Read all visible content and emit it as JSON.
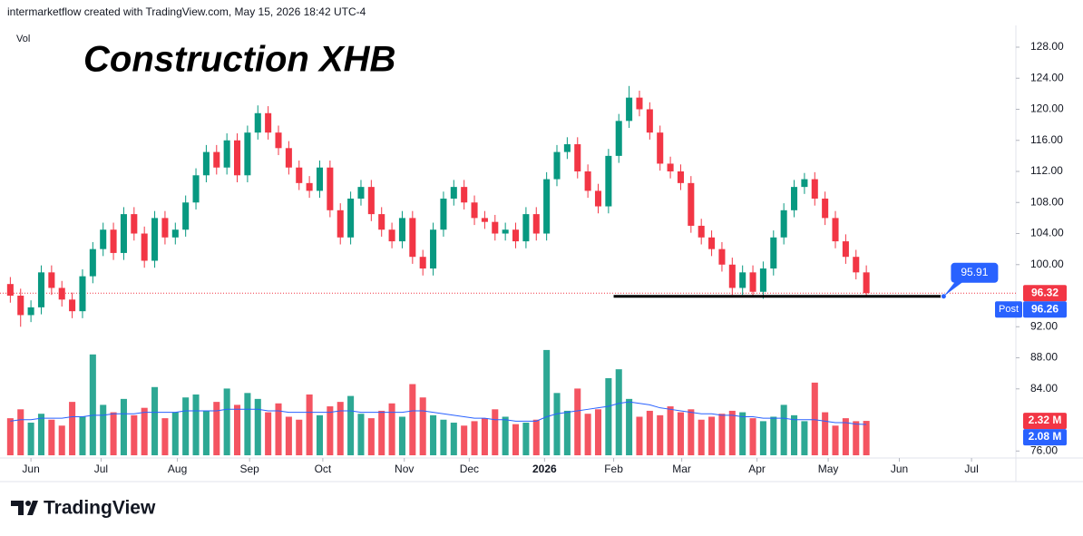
{
  "header": "intermarketflow created with TradingView.com, May 15, 2026 18:42 UTC-4",
  "footer_logo": "TradingView",
  "chart_data": {
    "type": "candlestick",
    "title": "Construction XHB",
    "volume_label": "Vol",
    "x": [
      0,
      1,
      2,
      3,
      4,
      5,
      6,
      7,
      8,
      9,
      10,
      11,
      12,
      13,
      14,
      15,
      16,
      17,
      18,
      19,
      20,
      21,
      22,
      23,
      24,
      25,
      26,
      27,
      28,
      29,
      30,
      31,
      32,
      33,
      34,
      35,
      36,
      37,
      38,
      39,
      40,
      41,
      42,
      43,
      44,
      45,
      46,
      47,
      48,
      49,
      50,
      51,
      52,
      53,
      54,
      55,
      56,
      57,
      58,
      59,
      60,
      61,
      62,
      63,
      64,
      65,
      66,
      67,
      68,
      69,
      70,
      71,
      72,
      73,
      74,
      75,
      76,
      77,
      78,
      79,
      80,
      81,
      82,
      83
    ],
    "open": [
      97.5,
      96.0,
      93.5,
      94.5,
      99.0,
      97.0,
      95.5,
      94.0,
      98.5,
      102.0,
      104.5,
      101.5,
      106.5,
      104.0,
      100.5,
      106.0,
      103.5,
      104.5,
      108.0,
      111.5,
      114.5,
      112.5,
      116.0,
      111.5,
      117.0,
      119.5,
      117.0,
      115.0,
      112.5,
      110.5,
      109.5,
      112.5,
      107.0,
      103.5,
      108.5,
      110.0,
      106.5,
      104.5,
      103.0,
      106.0,
      101.0,
      99.5,
      104.5,
      108.5,
      110.0,
      108.0,
      106.0,
      105.5,
      104.0,
      104.5,
      103.0,
      106.5,
      104.0,
      111.0,
      114.5,
      115.5,
      112.0,
      109.5,
      107.5,
      114.0,
      118.5,
      121.5,
      120.0,
      117.0,
      113.0,
      112.0,
      110.5,
      105.0,
      103.5,
      102.0,
      100.0,
      97.0,
      99.0,
      96.5,
      99.5,
      103.5,
      107.0,
      110.0,
      111.0,
      108.5,
      106.0,
      103.0,
      101.0,
      99.0
    ],
    "high": [
      98.4,
      96.9,
      95.4,
      99.9,
      99.9,
      97.9,
      96.4,
      99.4,
      102.9,
      105.4,
      105.4,
      107.4,
      107.4,
      104.9,
      106.9,
      106.9,
      105.4,
      108.9,
      112.4,
      115.4,
      115.4,
      116.9,
      116.9,
      117.9,
      120.5,
      120.4,
      117.9,
      115.9,
      113.4,
      111.4,
      113.4,
      113.4,
      107.9,
      109.4,
      110.9,
      110.9,
      107.4,
      105.4,
      106.9,
      106.9,
      101.9,
      105.4,
      109.4,
      110.9,
      110.9,
      108.9,
      106.9,
      106.4,
      105.4,
      105.4,
      107.4,
      107.4,
      111.9,
      115.4,
      116.4,
      116.4,
      112.9,
      110.4,
      114.9,
      119.4,
      123.0,
      122.4,
      120.9,
      117.9,
      113.9,
      112.9,
      111.4,
      105.9,
      104.4,
      102.9,
      100.9,
      99.9,
      99.9,
      100.4,
      104.4,
      107.9,
      110.9,
      111.8,
      111.9,
      109.4,
      106.9,
      103.9,
      101.9,
      99.9
    ],
    "low": [
      95.1,
      92.0,
      92.6,
      93.6,
      96.1,
      94.6,
      93.1,
      93.1,
      97.6,
      101.1,
      100.6,
      100.6,
      103.1,
      99.6,
      99.6,
      102.6,
      102.6,
      103.6,
      107.1,
      110.6,
      111.6,
      111.6,
      110.6,
      110.6,
      116.1,
      116.1,
      114.1,
      111.6,
      109.6,
      108.6,
      108.6,
      106.1,
      102.6,
      102.6,
      107.6,
      105.6,
      103.6,
      102.1,
      102.1,
      100.1,
      98.6,
      98.6,
      103.6,
      107.6,
      107.1,
      105.1,
      104.6,
      103.1,
      103.1,
      102.1,
      102.1,
      103.1,
      103.1,
      110.1,
      113.6,
      111.1,
      108.6,
      106.6,
      106.6,
      113.1,
      117.6,
      119.1,
      116.1,
      112.1,
      111.1,
      109.6,
      104.1,
      102.6,
      101.1,
      99.1,
      96.1,
      96.1,
      95.8,
      95.6,
      98.6,
      102.6,
      106.1,
      109.1,
      107.6,
      105.1,
      102.1,
      100.1,
      98.1,
      95.9
    ],
    "close": [
      96.0,
      93.5,
      94.5,
      99.0,
      97.0,
      95.5,
      94.0,
      98.5,
      102.0,
      104.5,
      101.5,
      106.5,
      104.0,
      100.5,
      106.0,
      103.5,
      104.5,
      108.0,
      111.5,
      114.5,
      112.5,
      116.0,
      111.5,
      117.0,
      119.5,
      117.0,
      115.0,
      112.5,
      110.5,
      109.5,
      112.5,
      107.0,
      103.5,
      108.5,
      110.0,
      106.5,
      104.5,
      103.0,
      106.0,
      101.0,
      99.5,
      104.5,
      108.5,
      110.0,
      108.0,
      106.0,
      105.5,
      104.0,
      104.5,
      103.0,
      106.5,
      104.0,
      111.0,
      114.5,
      115.5,
      112.0,
      109.5,
      107.5,
      114.0,
      118.5,
      121.5,
      120.0,
      117.0,
      113.0,
      112.0,
      110.5,
      105.0,
      103.5,
      102.0,
      100.0,
      97.0,
      99.0,
      96.5,
      99.5,
      103.5,
      107.0,
      110.0,
      111.0,
      108.5,
      106.0,
      103.0,
      101.0,
      99.0,
      96.32
    ],
    "volume": [
      2.5,
      3.1,
      2.2,
      2.8,
      2.4,
      2.0,
      3.6,
      2.6,
      6.8,
      3.4,
      2.9,
      3.8,
      2.7,
      3.2,
      4.6,
      2.5,
      2.9,
      3.9,
      4.1,
      3.0,
      3.6,
      4.5,
      3.4,
      4.2,
      3.8,
      2.9,
      3.5,
      2.6,
      2.4,
      4.1,
      2.7,
      3.3,
      3.6,
      4.0,
      2.8,
      2.5,
      3.0,
      3.5,
      2.6,
      4.8,
      3.9,
      2.7,
      2.4,
      2.2,
      2.0,
      2.3,
      2.5,
      3.1,
      2.6,
      2.1,
      2.2,
      2.4,
      7.1,
      4.2,
      3.0,
      4.5,
      2.8,
      3.1,
      5.2,
      5.8,
      3.8,
      2.6,
      3.0,
      2.7,
      3.3,
      2.9,
      3.1,
      2.4,
      2.6,
      2.8,
      3.0,
      2.9,
      2.5,
      2.3,
      2.6,
      3.4,
      2.7,
      2.3,
      4.9,
      2.9,
      2.0,
      2.5,
      2.3,
      2.32
    ],
    "volume_ma": [
      2.3,
      2.4,
      2.4,
      2.5,
      2.5,
      2.5,
      2.6,
      2.6,
      2.7,
      2.7,
      2.8,
      2.8,
      2.8,
      2.9,
      2.9,
      2.9,
      2.9,
      3.0,
      3.0,
      3.0,
      3.0,
      3.1,
      3.1,
      3.1,
      3.1,
      3.0,
      3.0,
      2.9,
      2.9,
      2.9,
      2.9,
      2.9,
      3.0,
      3.0,
      2.9,
      2.9,
      2.9,
      2.9,
      2.9,
      3.0,
      3.0,
      2.9,
      2.8,
      2.7,
      2.6,
      2.5,
      2.5,
      2.4,
      2.4,
      2.3,
      2.3,
      2.3,
      2.6,
      2.8,
      2.9,
      3.0,
      3.1,
      3.2,
      3.3,
      3.5,
      3.6,
      3.5,
      3.4,
      3.2,
      3.1,
      3.0,
      2.9,
      2.8,
      2.8,
      2.7,
      2.7,
      2.6,
      2.6,
      2.5,
      2.5,
      2.5,
      2.4,
      2.4,
      2.4,
      2.3,
      2.2,
      2.2,
      2.1,
      2.08
    ],
    "up_color": "#089981",
    "down_color": "#f23645",
    "volume_ma_color": "#2962ff",
    "xlim": [
      -1,
      97.5
    ],
    "xticks": [
      {
        "value": 2.0,
        "label": "Jun"
      },
      {
        "value": 8.8,
        "label": "Jul"
      },
      {
        "value": 16.2,
        "label": "Aug"
      },
      {
        "value": 23.2,
        "label": "Sep"
      },
      {
        "value": 30.3,
        "label": "Oct"
      },
      {
        "value": 38.2,
        "label": "Nov"
      },
      {
        "value": 44.5,
        "label": "Dec"
      },
      {
        "value": 51.8,
        "label": "2026"
      },
      {
        "value": 58.5,
        "label": "Feb"
      },
      {
        "value": 65.1,
        "label": "Mar"
      },
      {
        "value": 72.4,
        "label": "Apr"
      },
      {
        "value": 79.3,
        "label": "May"
      },
      {
        "value": 86.2,
        "label": "Jun"
      },
      {
        "value": 93.2,
        "label": "Jul"
      }
    ],
    "ylim": [
      75.1,
      129.4
    ],
    "yticks": [
      {
        "value": 128,
        "label": "128.00"
      },
      {
        "value": 124,
        "label": "124.00"
      },
      {
        "value": 120,
        "label": "120.00"
      },
      {
        "value": 116,
        "label": "116.00"
      },
      {
        "value": 112,
        "label": "112.00"
      },
      {
        "value": 108,
        "label": "108.00"
      },
      {
        "value": 104,
        "label": "104.00"
      },
      {
        "value": 100,
        "label": "100.00"
      },
      {
        "value": 92,
        "label": "92.00"
      },
      {
        "value": 88,
        "label": "88.00"
      },
      {
        "value": 84,
        "label": "84.00"
      },
      {
        "value": 76,
        "label": "76.00"
      }
    ],
    "volume_lim": [
      0,
      7.4
    ],
    "last_price": 96.32,
    "post_price": {
      "tag": "Post",
      "value": 96.26
    },
    "last_volume": {
      "value": 2.32,
      "label": "2.32 M"
    },
    "last_volume_ma": {
      "value": 2.08,
      "label": "2.08 M"
    },
    "support": {
      "value": 95.91,
      "x": [
        58.5,
        90.5
      ]
    }
  }
}
